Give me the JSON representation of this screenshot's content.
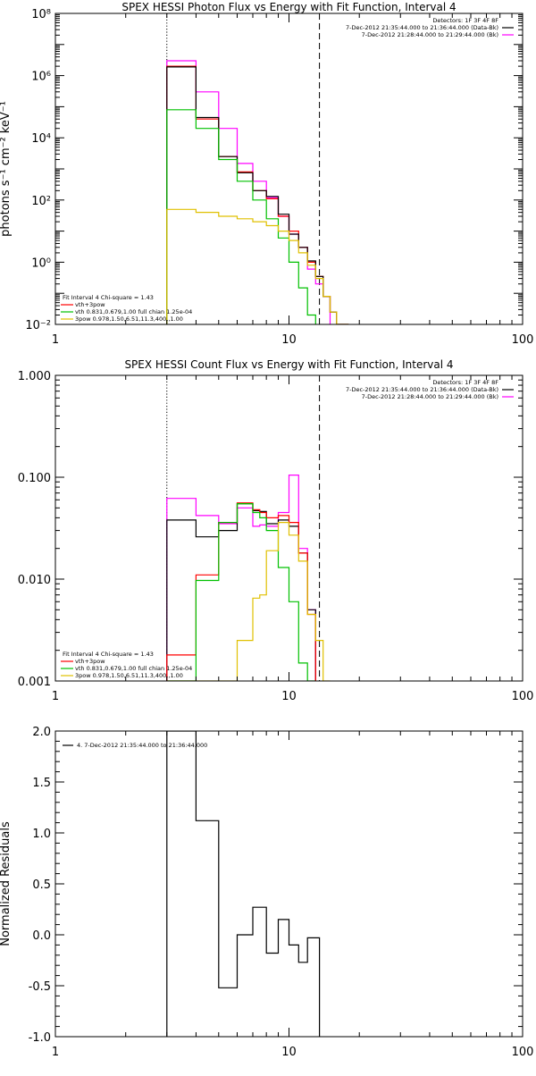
{
  "colors": {
    "axis": "#000000",
    "total": "#000000",
    "fit_total": "#ff0000",
    "vth": "#00c000",
    "3pow": "#e0c000",
    "background": "#ff00ff",
    "marker": "#000000"
  },
  "chart_data": [
    {
      "id": "photon",
      "type": "line",
      "step": true,
      "title": "SPEX HESSI Photon Flux vs Energy with Fit Function, Interval 4",
      "xlabel": "",
      "ylabel": "photons s⁻¹ cm⁻² keV⁻¹",
      "xscale": "log",
      "yscale": "log",
      "xlim": [
        1,
        100
      ],
      "ylim": [
        0.01,
        100000000
      ],
      "xticks": [
        1,
        10,
        100
      ],
      "xtick_labels": [
        "1",
        "10",
        "100"
      ],
      "yticks": [
        0.01,
        1,
        100,
        10000,
        1000000,
        100000000
      ],
      "ytick_labels": [
        "10⁻²",
        "10⁰",
        "10²",
        "10⁴",
        "10⁶",
        "10⁸"
      ],
      "vlines": [
        {
          "x": 3,
          "style": "dotted"
        },
        {
          "x": 13.5,
          "style": "dashed"
        }
      ],
      "legend_top_right": {
        "lines": [
          "Detectors: 1F 3F 4F 8F",
          "7-Dec-2012 21:35:44.000 to 21:36:44.000 (Data-Bk)",
          "7-Dec-2012 21:28:44.000 to 21:29:44.000 (Bk)"
        ],
        "colors": [
          "",
          "total",
          "background"
        ]
      },
      "legend_bottom_left": {
        "lines": [
          "Fit Interval  4    Chi-square = 1.43",
          "vth+3pow",
          "vth 0.831,0.679,1.00  full chian 1.25e-04",
          "3pow 0.978,1.50,6.51,11.3,400.,1.00"
        ],
        "colors": [
          "",
          "fit_total",
          "vth",
          "3pow"
        ]
      },
      "bin_edges": [
        3,
        4,
        5,
        6,
        7,
        8,
        9,
        10,
        11,
        12,
        13,
        14,
        15,
        16,
        18
      ],
      "series": [
        {
          "key": "background",
          "values": [
            3000000,
            300000,
            20000,
            1500,
            400,
            120,
            30,
            8,
            3,
            0.6,
            0.2,
            0.08,
            null,
            null
          ]
        },
        {
          "key": "fit_total",
          "values": [
            2000000,
            40000,
            2500,
            800,
            200,
            110,
            30,
            10,
            3,
            1,
            0.35,
            0.08,
            0.025,
            0.01
          ]
        },
        {
          "key": "total",
          "values": [
            1900000,
            45000,
            2500,
            750,
            200,
            130,
            35,
            8,
            3,
            1.1,
            0.35,
            0.08,
            0.025,
            0.01
          ]
        },
        {
          "key": "vth",
          "values": [
            80000,
            20000,
            2000,
            400,
            100,
            25,
            6,
            1,
            0.15,
            0.02,
            null,
            null,
            null,
            null
          ]
        },
        {
          "key": "3pow",
          "values": [
            50,
            40,
            30,
            25,
            20,
            15,
            10,
            5,
            2,
            0.8,
            0.3,
            0.08,
            0.025,
            0.01
          ]
        }
      ]
    },
    {
      "id": "count",
      "type": "line",
      "step": true,
      "title": "SPEX HESSI Count Flux vs Energy with Fit Function, Interval 4",
      "xlabel": "",
      "ylabel": "",
      "xscale": "log",
      "yscale": "log",
      "xlim": [
        1,
        100
      ],
      "ylim": [
        0.001,
        1
      ],
      "xticks": [
        1,
        10,
        100
      ],
      "xtick_labels": [
        "1",
        "10",
        "100"
      ],
      "yticks": [
        0.001,
        0.01,
        0.1,
        1
      ],
      "ytick_labels": [
        "0.001",
        "0.010",
        "0.100",
        "1.000"
      ],
      "vlines": [
        {
          "x": 3,
          "style": "dotted"
        },
        {
          "x": 13.5,
          "style": "dashed"
        }
      ],
      "legend_top_right": {
        "lines": [
          "Detectors: 1F 3F 4F 8F",
          "7-Dec-2012 21:35:44.000 to 21:36:44.000 (Data-Bk)",
          "7-Dec-2012 21:28:44.000 to 21:29:44.000 (Bk)"
        ],
        "colors": [
          "",
          "total",
          "background"
        ]
      },
      "legend_bottom_left": {
        "lines": [
          "Fit Interval  4    Chi-square = 1.43",
          "vth+3pow",
          "vth 0.831,0.679,1.00  full chian 1.25e-04",
          "3pow 0.978,1.50,6.51,11.3,400.,1.00"
        ],
        "colors": [
          "",
          "fit_total",
          "vth",
          "3pow"
        ]
      },
      "bin_edges": [
        3,
        4,
        5,
        6,
        7,
        7.5,
        8,
        9,
        10,
        11,
        12,
        13,
        14,
        15,
        16
      ],
      "series": [
        {
          "key": "background",
          "values": [
            0.062,
            0.042,
            0.035,
            0.05,
            0.033,
            0.034,
            0.033,
            0.045,
            0.105,
            0.02,
            0.005,
            null,
            null,
            null
          ]
        },
        {
          "key": "total",
          "values": [
            0.038,
            0.026,
            0.03,
            0.055,
            0.047,
            0.046,
            0.035,
            0.038,
            0.033,
            0.018,
            0.005,
            null,
            null,
            null
          ]
        },
        {
          "key": "fit_total",
          "values": [
            0.0018,
            0.011,
            0.036,
            0.056,
            0.048,
            0.045,
            0.04,
            0.042,
            0.036,
            0.018,
            0.0045,
            null,
            null,
            null
          ]
        },
        {
          "key": "vth",
          "values": [
            0.001,
            0.0097,
            0.036,
            0.055,
            0.045,
            0.04,
            0.03,
            0.013,
            0.006,
            0.0015,
            0.001,
            null,
            null,
            null
          ]
        },
        {
          "key": "3pow",
          "values": [
            0.001,
            0.001,
            0.001,
            0.0025,
            0.0065,
            0.007,
            0.019,
            0.036,
            0.027,
            0.015,
            0.0045,
            0.0025,
            0.001,
            null
          ]
        }
      ]
    },
    {
      "id": "residuals",
      "type": "line",
      "step": true,
      "title": "",
      "xlabel": "",
      "ylabel": "Normalized Residuals",
      "xscale": "log",
      "yscale": "linear",
      "xlim": [
        1,
        100
      ],
      "ylim": [
        -1,
        2
      ],
      "xticks": [
        1,
        10,
        100
      ],
      "xtick_labels": [
        "1",
        "10",
        "100"
      ],
      "yticks": [
        -1,
        -0.5,
        0,
        0.5,
        1,
        1.5,
        2
      ],
      "ytick_labels": [
        "-1.0",
        "-0.5",
        "0.0",
        "0.5",
        "1.0",
        "1.5",
        "2.0"
      ],
      "vlines": [],
      "legend_top_left": {
        "lines": [
          "4.  7-Dec-2012 21:35:44.000 to 21:36:44.000"
        ],
        "colors": [
          "total"
        ]
      },
      "bin_edges": [
        3,
        4,
        5,
        6,
        7,
        8,
        9,
        10,
        11,
        12,
        13.5
      ],
      "series": [
        {
          "key": "total",
          "values": [
            2.0,
            1.12,
            -0.52,
            0.0,
            0.27,
            -0.18,
            0.15,
            -0.1,
            -0.27,
            -0.03
          ]
        }
      ]
    }
  ]
}
